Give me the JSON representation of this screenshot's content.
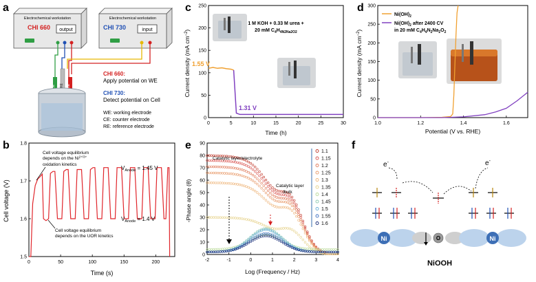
{
  "panels": {
    "a": {
      "label": "a",
      "ws1_title": "Electrochemical workstation",
      "ws1_model": "CHI 660",
      "ws1_port": "output",
      "ws2_title": "Electrochemical workstation",
      "ws2_model": "CHI 730",
      "ws2_port": "input",
      "electrodes": [
        "CE",
        "RE",
        "WE"
      ],
      "legend_660_head": "CHI 660:",
      "legend_660_text": "Apply potential on WE",
      "legend_730_head": "CHI 730:",
      "legend_730_text": "Detect potential on Cell",
      "defs": [
        "WE: working electrode",
        "CE: counter electrode",
        "RE: reference electrode"
      ],
      "colors": {
        "red": "#d42020",
        "blue": "#1f4fb4",
        "green": "#2f9e44",
        "yellow": "#e6b800"
      }
    },
    "b": {
      "label": "b",
      "ylabel": "Cell voltage (V)",
      "xlabel": "Time (s)",
      "annot_top_1": "Cell voltage equilibrium",
      "annot_top_2": "depends on the Ni",
      "annot_top_sup": "2+/3+",
      "annot_top_3": "oxidation kinetics",
      "annot_bot_1": "Cell voltage equilibrium",
      "annot_bot_2": "depends on the UOR kinetics",
      "v_high": "V",
      "v_high_sub": "Anode",
      "v_high_val": " = 1.45 V",
      "v_low": "V",
      "v_low_sub": "Anode",
      "v_low_val": " = 1.4 V"
    },
    "c": {
      "label": "c",
      "legend_1": "1 M KOH + 0.33 M urea +",
      "legend_2": "20 mM C",
      "legend_2_tail": "H",
      "legend_formula": "4N2Na2O2",
      "val_orange": "1.55 V",
      "val_purple": "1.31 V"
    },
    "d": {
      "label": "d",
      "legend_1": "Ni(OH)",
      "legend_1_sub": "2",
      "legend_2a": "Ni(OH)",
      "legend_2a_sub": "2",
      "legend_2a_tail": " after 2400 CV",
      "legend_2b": "in 20 mM C",
      "legend_2b_tail": "H",
      "legend_2b_rest": "N",
      "legend_2b_end": "Na",
      "legend_2b_o": "O"
    },
    "e": {
      "label": "e",
      "ylabel": "-Phase angle (θ)",
      "xlabel": "Log (Frequency / Hz)",
      "annot_1": "Catalytic layer/electrolyte",
      "annot_2a": "Catalytic layer",
      "annot_2b": "/bulk"
    },
    "f": {
      "label": "f",
      "electron": "e",
      "ni": "Ni",
      "o": "O",
      "title": "NiOOH"
    }
  },
  "chart_data": [
    {
      "id": "panel-b",
      "type": "line",
      "title": "",
      "xlabel": "Time (s)",
      "ylabel": "Cell voltage (V)",
      "xlim": [
        0,
        230
      ],
      "ylim": [
        1.5,
        1.8
      ],
      "xticks": [
        0,
        50,
        100,
        150,
        200
      ],
      "yticks": [
        1.5,
        1.6,
        1.7,
        1.8
      ],
      "series": [
        {
          "name": "cell voltage",
          "color": "#e0242a",
          "x": [
            0,
            3,
            6,
            10,
            14,
            17,
            21,
            23,
            27,
            31,
            34,
            38,
            41,
            45,
            48,
            52,
            55,
            59,
            62,
            66,
            69,
            73,
            76,
            80,
            83,
            87,
            90,
            94,
            97,
            101,
            104,
            108,
            111,
            115,
            118,
            122,
            125,
            129,
            132,
            136,
            139,
            143,
            146,
            150,
            153,
            157,
            160,
            164,
            167,
            171,
            174,
            178,
            181,
            185,
            188,
            192,
            195,
            199,
            202,
            206,
            209,
            213,
            216,
            219,
            221,
            222
          ],
          "y": [
            1.5,
            1.5,
            1.64,
            1.688,
            1.705,
            1.71,
            1.718,
            1.6,
            1.595,
            1.6,
            1.72,
            1.725,
            1.725,
            1.6,
            1.6,
            1.6,
            1.725,
            1.73,
            1.73,
            1.6,
            1.6,
            1.6,
            1.73,
            1.73,
            1.73,
            1.6,
            1.6,
            1.6,
            1.73,
            1.735,
            1.735,
            1.6,
            1.6,
            1.6,
            1.735,
            1.735,
            1.735,
            1.6,
            1.6,
            1.6,
            1.735,
            1.735,
            1.735,
            1.6,
            1.6,
            1.6,
            1.735,
            1.735,
            1.735,
            1.6,
            1.6,
            1.6,
            1.735,
            1.735,
            1.735,
            1.6,
            1.6,
            1.6,
            1.735,
            1.735,
            1.735,
            1.6,
            1.6,
            1.735,
            1.735,
            1.5
          ]
        }
      ]
    },
    {
      "id": "panel-c",
      "type": "line",
      "xlabel": "Time (h)",
      "ylabel": "Current density (mA cm⁻²)",
      "xlim": [
        0,
        30
      ],
      "ylim": [
        0,
        250
      ],
      "xticks": [
        0,
        5,
        10,
        15,
        20,
        25,
        30
      ],
      "yticks": [
        0,
        50,
        100,
        150,
        200,
        250
      ],
      "series": [
        {
          "name": "1.55 V",
          "color": "#f0a030",
          "x": [
            0,
            1,
            2,
            3,
            4,
            5,
            5.6
          ],
          "y": [
            110,
            112,
            110,
            111,
            109,
            108,
            106
          ]
        },
        {
          "name": "1.31 V",
          "color": "#8040c0",
          "x": [
            5.6,
            6.2,
            7,
            10,
            15,
            20,
            25,
            30
          ],
          "y": [
            106,
            10,
            7,
            7,
            7,
            7,
            7,
            7
          ]
        }
      ]
    },
    {
      "id": "panel-d",
      "type": "line",
      "xlabel": "Potential (V vs. RHE)",
      "ylabel": "Current density (mA cm⁻²)",
      "xlim": [
        1.0,
        1.7
      ],
      "ylim": [
        0,
        300
      ],
      "xticks": [
        1.0,
        1.2,
        1.4,
        1.6
      ],
      "yticks": [
        0,
        50,
        100,
        150,
        200,
        250,
        300
      ],
      "series": [
        {
          "name": "Ni(OH)2",
          "color": "#f0a030",
          "x": [
            1.0,
            1.2,
            1.3,
            1.34,
            1.35,
            1.355,
            1.36,
            1.365,
            1.37,
            1.375
          ],
          "y": [
            0,
            0,
            1,
            3,
            10,
            60,
            140,
            220,
            280,
            300
          ]
        },
        {
          "name": "Ni(OH)2 after 2400 CV in 20 mM C4H4N2Na2O2",
          "color": "#8040c0",
          "x": [
            1.0,
            1.3,
            1.4,
            1.5,
            1.55,
            1.6,
            1.65,
            1.7
          ],
          "y": [
            0,
            0,
            2,
            8,
            15,
            25,
            45,
            68
          ]
        }
      ]
    },
    {
      "id": "panel-e",
      "type": "scatter",
      "xlabel": "Log (Frequency / Hz)",
      "ylabel": "-Phase angle (θ)",
      "xlim": [
        -2,
        4
      ],
      "ylim": [
        0,
        90
      ],
      "xticks": [
        -2,
        -1,
        0,
        1,
        2,
        3,
        4
      ],
      "yticks": [
        0,
        10,
        20,
        30,
        40,
        50,
        60,
        70,
        80,
        90
      ],
      "legend": [
        "1.1",
        "1.15",
        "1.2",
        "1.25",
        "1.3",
        "1.35",
        "1.4",
        "1.45",
        "1.5",
        "1.55",
        "1.6"
      ],
      "series": [
        {
          "name": "1.1",
          "color": "#c0392b",
          "plateau": 80,
          "shoulder": 40
        },
        {
          "name": "1.15",
          "color": "#d9534f",
          "plateau": 76,
          "shoulder": 38
        },
        {
          "name": "1.2",
          "color": "#e07b5a",
          "plateau": 71,
          "shoulder": 36
        },
        {
          "name": "1.25",
          "color": "#e89a6a",
          "plateau": 66,
          "shoulder": 34
        },
        {
          "name": "1.3",
          "color": "#eeb57a",
          "plateau": 58,
          "shoulder": 31
        },
        {
          "name": "1.35",
          "color": "#e6d28a",
          "plateau": 30,
          "shoulder": 18
        },
        {
          "name": "1.4",
          "color": "#b9d99a",
          "plateau": 4,
          "shoulder": 12
        },
        {
          "name": "1.45",
          "color": "#8cc9b0",
          "plateau": 2,
          "shoulder": 19
        },
        {
          "name": "1.5",
          "color": "#6ab0d8",
          "plateau": 2,
          "shoulder": 18
        },
        {
          "name": "1.55",
          "color": "#3c6fbf",
          "plateau": 2,
          "shoulder": 15
        },
        {
          "name": "1.6",
          "color": "#1c2f7a",
          "plateau": 2,
          "shoulder": 13
        }
      ]
    }
  ]
}
